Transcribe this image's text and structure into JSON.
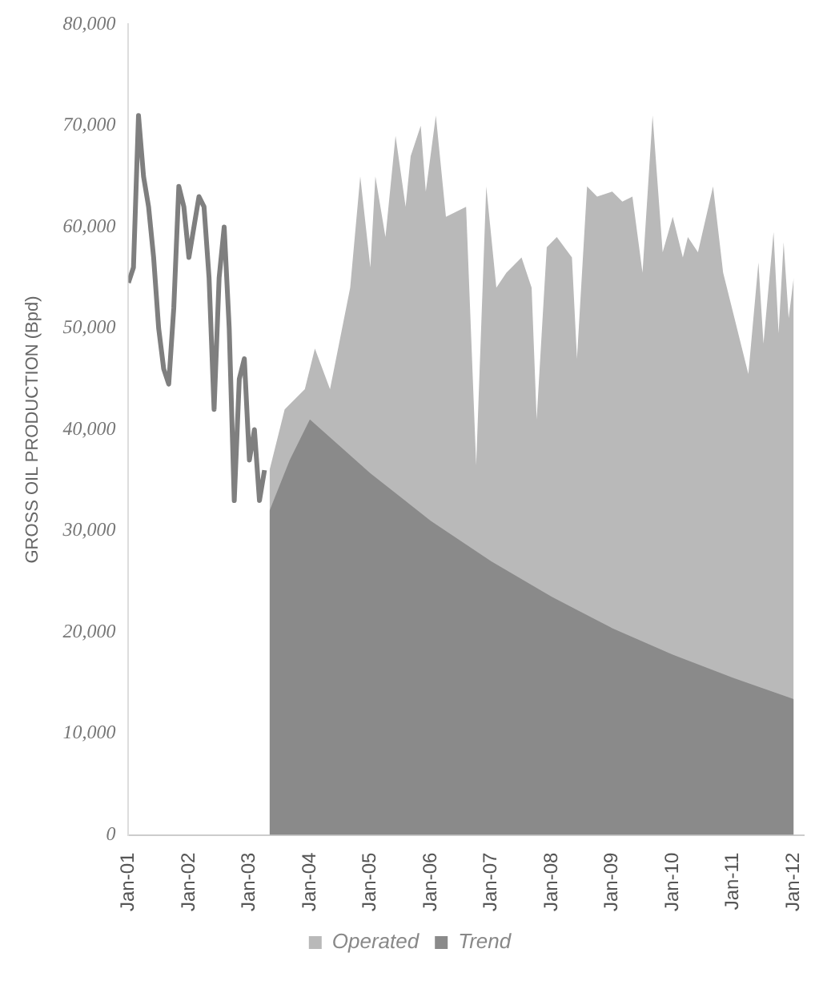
{
  "chart_data": {
    "type": "area",
    "ylabel": "GROSS OIL PRODUCTION (Bpd)",
    "xlim": [
      "2001-01",
      "2012-03"
    ],
    "xticks": [
      {
        "value": "2001-01",
        "label": "Jan-01"
      },
      {
        "value": "2002-01",
        "label": "Jan-02"
      },
      {
        "value": "2003-01",
        "label": "Jan-03"
      },
      {
        "value": "2004-01",
        "label": "Jan-04"
      },
      {
        "value": "2005-01",
        "label": "Jan-05"
      },
      {
        "value": "2006-01",
        "label": "Jan-06"
      },
      {
        "value": "2007-01",
        "label": "Jan-07"
      },
      {
        "value": "2008-01",
        "label": "Jan-08"
      },
      {
        "value": "2009-01",
        "label": "Jan-09"
      },
      {
        "value": "2010-01",
        "label": "Jan-10"
      },
      {
        "value": "2011-01",
        "label": "Jan-11"
      },
      {
        "value": "2012-01",
        "label": "Jan-12"
      }
    ],
    "ylim": [
      0,
      80000
    ],
    "yticks": [
      0,
      {
        "value": 10000,
        "label": "10,000"
      },
      {
        "value": 20000,
        "label": "20,000"
      },
      {
        "value": 30000,
        "label": "30,000"
      },
      {
        "value": 40000,
        "label": "40,000"
      },
      {
        "value": 50000,
        "label": "50,000"
      },
      {
        "value": 60000,
        "label": "60,000"
      },
      {
        "value": 70000,
        "label": "70,000"
      },
      {
        "value": 80000,
        "label": "80,000"
      }
    ],
    "grid": false,
    "legend": "bottom",
    "series": [
      {
        "type": "line",
        "color": "#7f7f7f",
        "x": [
          "2001-01",
          "2001-02",
          "2001-03",
          "2001-04",
          "2001-05",
          "2001-06",
          "2001-07",
          "2001-08",
          "2001-09",
          "2001-10",
          "2001-11",
          "2001-12",
          "2002-01",
          "2002-02",
          "2002-03",
          "2002-04",
          "2002-05",
          "2002-06",
          "2002-07",
          "2002-08",
          "2002-09",
          "2002-10",
          "2002-11",
          "2002-12",
          "2003-01",
          "2003-02",
          "2003-03",
          "2003-04"
        ],
        "values": [
          54500,
          56000,
          71000,
          65000,
          62000,
          57000,
          50000,
          46000,
          44500,
          52000,
          64000,
          62000,
          57000,
          60000,
          63000,
          62000,
          55000,
          42000,
          55000,
          60000,
          50000,
          33000,
          45000,
          47000,
          37000,
          40000,
          33000,
          36000
        ]
      },
      {
        "name": "Operated",
        "color": "#b9b9b9",
        "x": [
          "2003-05",
          "2003-08",
          "2003-12",
          "2004-02",
          "2004-05",
          "2004-09",
          "2004-11",
          "2005-01",
          "2005-02",
          "2005-04",
          "2005-06",
          "2005-08",
          "2005-09",
          "2005-11",
          "2005-12",
          "2006-02",
          "2006-04",
          "2006-08",
          "2006-10",
          "2006-12",
          "2007-02",
          "2007-04",
          "2007-07",
          "2007-09",
          "2007-10",
          "2007-12",
          "2008-02",
          "2008-05",
          "2008-06",
          "2008-08",
          "2008-10",
          "2009-01",
          "2009-03",
          "2009-05",
          "2009-07",
          "2009-09",
          "2009-11",
          "2010-01",
          "2010-03",
          "2010-04",
          "2010-06",
          "2010-09",
          "2010-11",
          "2011-01",
          "2011-04",
          "2011-06",
          "2011-07",
          "2011-09",
          "2011-10",
          "2011-11",
          "2011-12",
          "2012-01"
        ],
        "values": [
          36000,
          42000,
          44000,
          48000,
          44000,
          54000,
          65000,
          56000,
          65000,
          59000,
          69000,
          62000,
          67000,
          70000,
          63500,
          71000,
          61000,
          62000,
          36500,
          64000,
          54000,
          55500,
          57000,
          54000,
          41000,
          58000,
          59000,
          57000,
          47000,
          64000,
          63000,
          63500,
          62500,
          63000,
          55500,
          71000,
          57500,
          61000,
          57000,
          59000,
          57500,
          64000,
          55500,
          51500,
          45500,
          56500,
          48500,
          59500,
          49500,
          58500,
          51000,
          55000
        ]
      },
      {
        "name": "Trend",
        "color": "#8a8a8a",
        "x": [
          "2003-05",
          "2003-09",
          "2004-01",
          "2005-01",
          "2006-01",
          "2007-01",
          "2008-01",
          "2009-01",
          "2010-01",
          "2011-01",
          "2012-01"
        ],
        "values": [
          32000,
          37000,
          41000,
          35700,
          31000,
          27000,
          23500,
          20400,
          17800,
          15500,
          13400
        ]
      }
    ]
  }
}
